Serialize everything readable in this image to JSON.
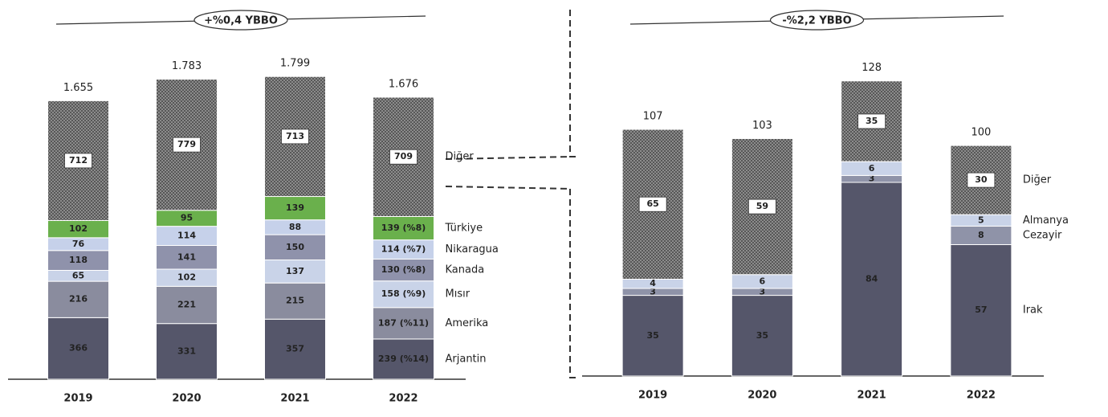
{
  "chart_data": [
    {
      "type": "bar",
      "stacked": true,
      "annotation": "+%0,4 YBBO",
      "categories": [
        "2019",
        "2020",
        "2021",
        "2022"
      ],
      "ylim": [
        0,
        1800
      ],
      "totals": {
        "values": [
          1655,
          1783,
          1799,
          1676
        ],
        "value_labels": [
          "1.655",
          "1.783",
          "1.799",
          "1.676"
        ]
      },
      "series": [
        {
          "name": "Arjantin",
          "color": "#55566a",
          "values": [
            366,
            331,
            357,
            239
          ],
          "value_labels": [
            "366",
            "331",
            "357",
            "239 (%14)"
          ]
        },
        {
          "name": "Amerika",
          "color": "#8a8c9e",
          "values": [
            216,
            221,
            215,
            187
          ],
          "value_labels": [
            "216",
            "221",
            "215",
            "187 (%11)"
          ]
        },
        {
          "name": "Mısır",
          "color": "#c9d3e8",
          "values": [
            65,
            102,
            137,
            158
          ],
          "value_labels": [
            "65",
            "102",
            "137",
            "158 (%9)"
          ]
        },
        {
          "name": "Kanada",
          "color": "#8f92ab",
          "values": [
            118,
            141,
            150,
            130
          ],
          "value_labels": [
            "118",
            "141",
            "150",
            "130 (%8)"
          ]
        },
        {
          "name": "Nikaragua",
          "color": "#c6d1ea",
          "values": [
            76,
            114,
            88,
            114
          ],
          "value_labels": [
            "76",
            "114",
            "88",
            "114 (%7)"
          ]
        },
        {
          "name": "Türkiye",
          "color": "#6ab04c",
          "values": [
            102,
            95,
            139,
            139
          ],
          "value_labels": [
            "102",
            "95",
            "139",
            "139 (%8)"
          ]
        },
        {
          "name": "Diğer",
          "color": "#8c8c8c",
          "pattern": "hatch",
          "values": [
            712,
            779,
            713,
            709
          ]
        }
      ]
    },
    {
      "type": "bar",
      "stacked": true,
      "annotation": "-%2,2 YBBO",
      "categories": [
        "2019",
        "2020",
        "2021",
        "2022"
      ],
      "ylim": [
        0,
        130
      ],
      "totals": {
        "values": [
          107,
          103,
          128,
          100
        ]
      },
      "series": [
        {
          "name": "Irak",
          "color": "#55566a",
          "values": [
            35,
            35,
            84,
            57
          ]
        },
        {
          "name": "Cezayir",
          "color": "#8f93a8",
          "values": [
            3,
            3,
            3,
            8
          ]
        },
        {
          "name": "Almanya",
          "color": "#c9d3e8",
          "values": [
            4,
            6,
            6,
            5
          ]
        },
        {
          "name": "Diğer",
          "color": "#8c8c8c",
          "pattern": "hatch",
          "values": [
            65,
            59,
            35,
            30
          ]
        }
      ]
    }
  ]
}
